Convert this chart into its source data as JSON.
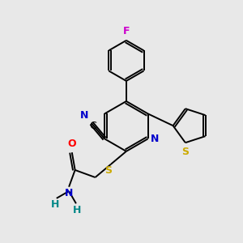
{
  "background_color": "#e8e8e8",
  "figsize": [
    3.0,
    3.0
  ],
  "dpi": 100,
  "colors": {
    "bond": "#000000",
    "N": "#0000cc",
    "O": "#ff0000",
    "S": "#ccaa00",
    "F": "#cc00cc",
    "H": "#008888",
    "C_label": "#000000"
  },
  "xlim": [
    0,
    10
  ],
  "ylim": [
    0,
    10
  ],
  "lw": 1.4,
  "font_size": 9
}
